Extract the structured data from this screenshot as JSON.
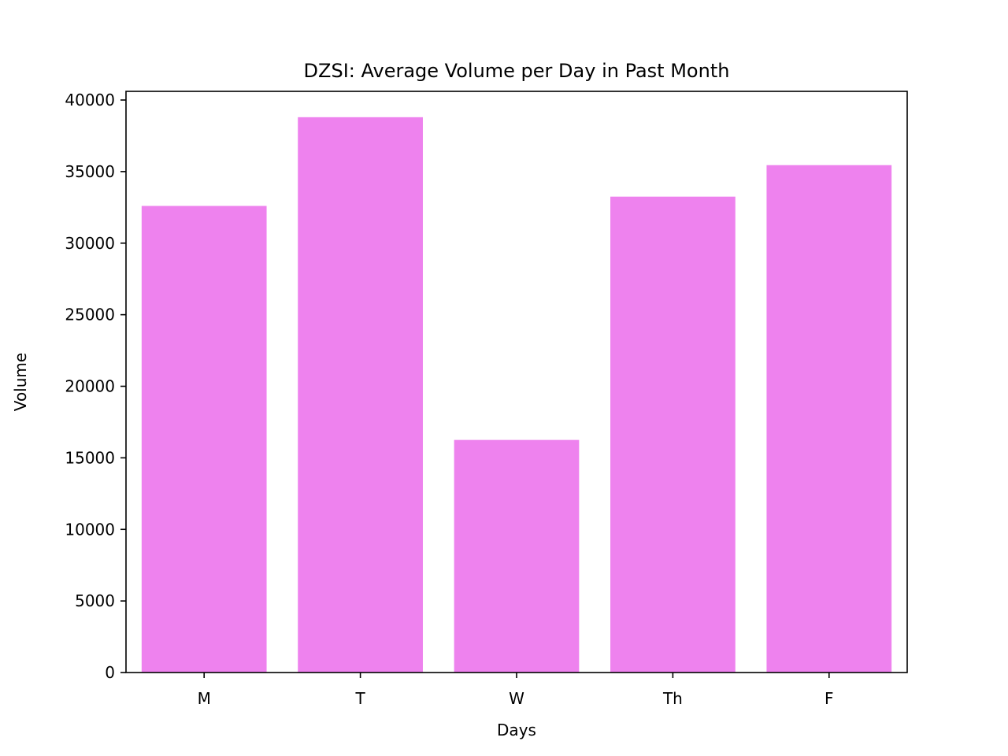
{
  "chart_data": {
    "type": "bar",
    "title": "DZSI: Average Volume per Day in Past Month",
    "xlabel": "Days",
    "ylabel": "Volume",
    "categories": [
      "M",
      "T",
      "W",
      "Th",
      "F"
    ],
    "values": [
      32600,
      38800,
      16250,
      33250,
      35450
    ],
    "ylim": [
      0,
      40500
    ],
    "yticks": [
      0,
      5000,
      10000,
      15000,
      20000,
      25000,
      30000,
      35000,
      40000
    ],
    "ytick_labels": [
      "0",
      "5000",
      "10000",
      "15000",
      "20000",
      "25000",
      "30000",
      "35000",
      "40000"
    ],
    "bar_color": "#ee82ee",
    "grid": false,
    "legend": false
  }
}
